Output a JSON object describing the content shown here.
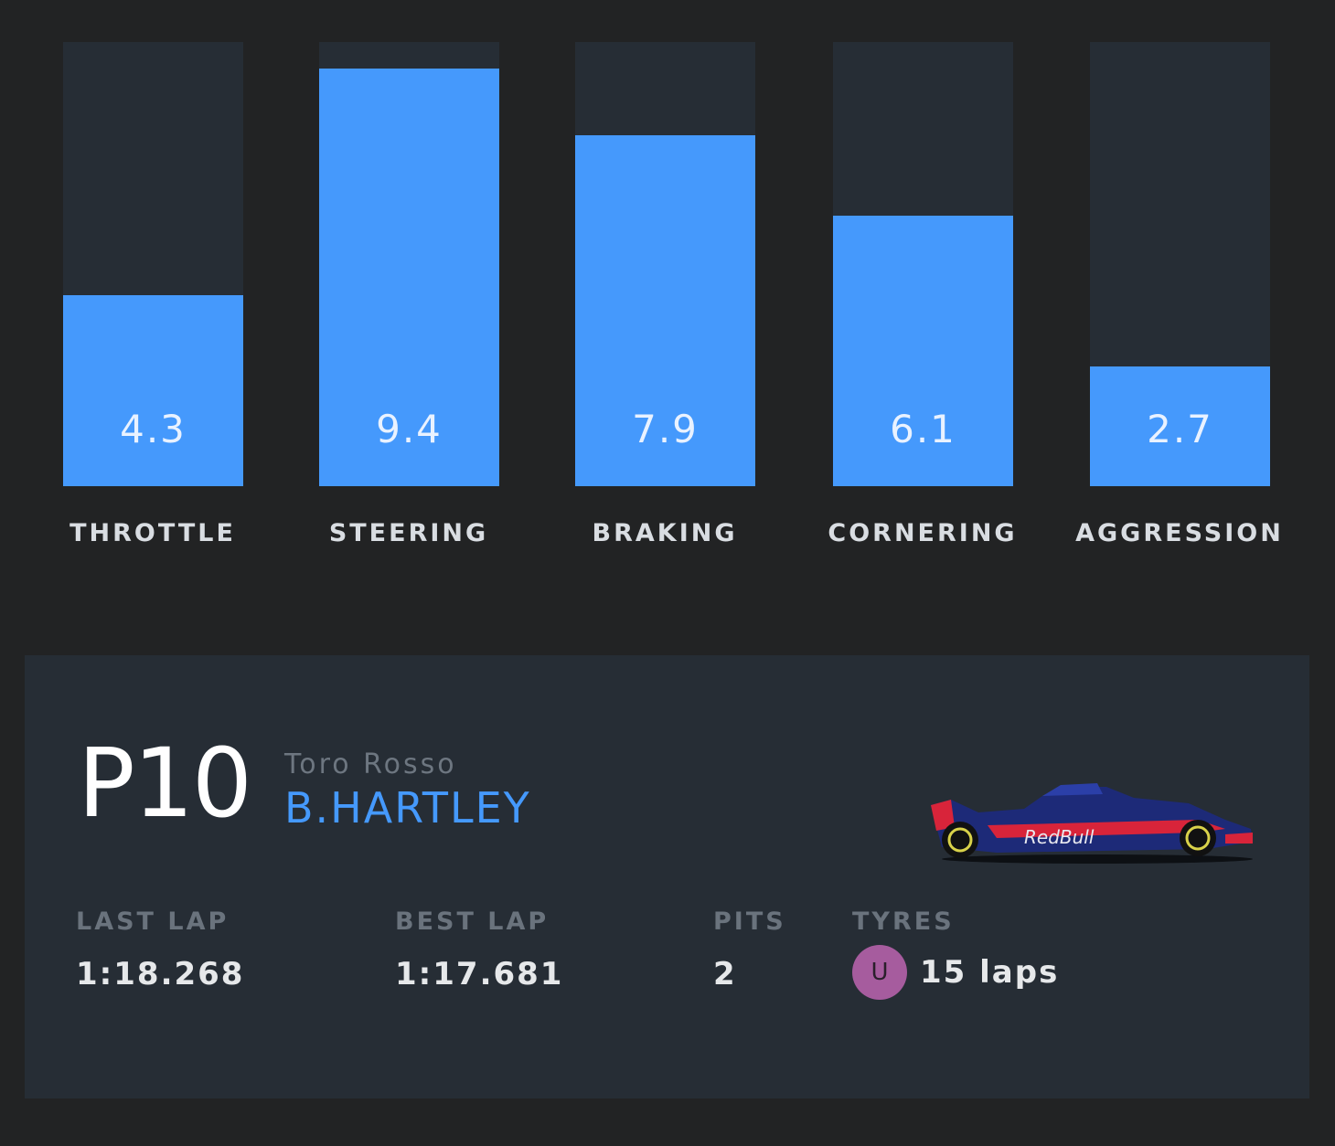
{
  "chart_data": {
    "type": "bar",
    "categories": [
      "THROTTLE",
      "STEERING",
      "BRAKING",
      "CORNERING",
      "AGGRESSION"
    ],
    "values": [
      4.3,
      9.4,
      7.9,
      6.1,
      2.7
    ],
    "value_labels": [
      "4.3",
      "9.4",
      "7.9",
      "6.1",
      "2.7"
    ],
    "ylim": [
      0,
      10
    ],
    "grid": false,
    "colors": {
      "fill": "#4599fc",
      "track": "#262d35"
    }
  },
  "driver": {
    "position": "P10",
    "team": "Toro Rosso",
    "name": "B.HARTLEY"
  },
  "stats": {
    "last_lap_label": "LAST LAP",
    "last_lap": "1:18.268",
    "best_lap_label": "BEST LAP",
    "best_lap": "1:17.681",
    "pits_label": "PITS",
    "pits": "2",
    "tyres_label": "TYRES",
    "tyre_compound": "U",
    "tyre_laps": "15 laps"
  },
  "colors": {
    "background": "#222324",
    "card": "#262d35",
    "accent": "#4599fc",
    "tyre_ultrasoft": "#a65c9e"
  },
  "car": {
    "icon": "toro-rosso-car-icon"
  }
}
